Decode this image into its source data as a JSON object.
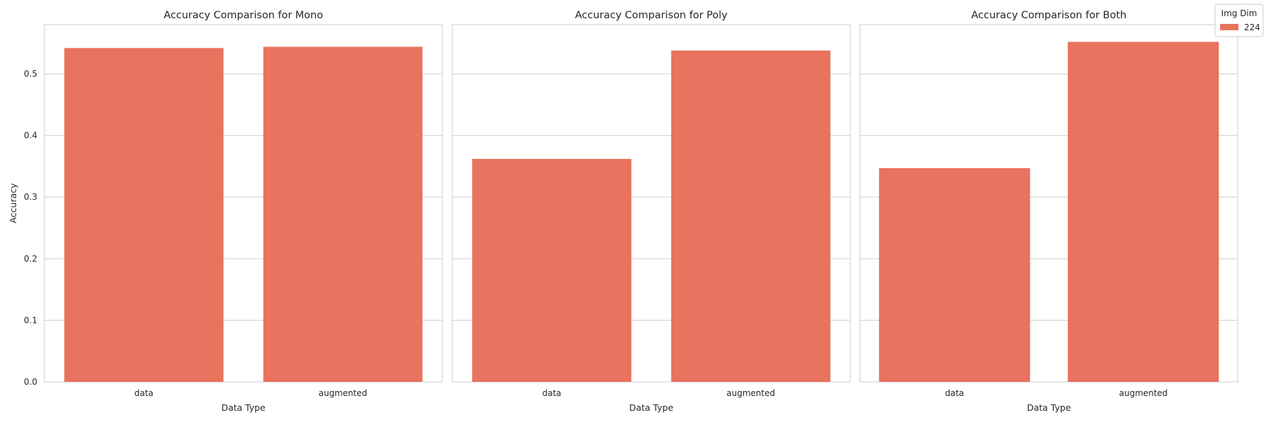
{
  "colors": {
    "bar": "#e8735e",
    "grid": "#cfcfcf",
    "spine": "#cccccc",
    "text": "#262626",
    "background": "#ffffff"
  },
  "legend": {
    "title": "Img Dim",
    "entries": [
      "224"
    ],
    "placement": "top-right"
  },
  "chart_data": [
    {
      "type": "bar",
      "title": "Accuracy Comparison for Mono",
      "xlabel": "Data Type",
      "ylabel": "Accuracy",
      "categories": [
        "data",
        "augmented"
      ],
      "series": [
        {
          "name": "224",
          "values": [
            0.542,
            0.544
          ]
        }
      ],
      "ylim": [
        0,
        0.58
      ],
      "yticks": [
        0.0,
        0.1,
        0.2,
        0.3,
        0.4,
        0.5
      ],
      "grid": true
    },
    {
      "type": "bar",
      "title": "Accuracy Comparison for Poly",
      "xlabel": "Data Type",
      "ylabel": "",
      "categories": [
        "data",
        "augmented"
      ],
      "series": [
        {
          "name": "224",
          "values": [
            0.362,
            0.538
          ]
        }
      ],
      "ylim": [
        0,
        0.58
      ],
      "yticks": [
        0.0,
        0.1,
        0.2,
        0.3,
        0.4,
        0.5
      ],
      "grid": true
    },
    {
      "type": "bar",
      "title": "Accuracy Comparison for Both",
      "xlabel": "Data Type",
      "ylabel": "",
      "categories": [
        "data",
        "augmented"
      ],
      "series": [
        {
          "name": "224",
          "values": [
            0.347,
            0.552
          ]
        }
      ],
      "ylim": [
        0,
        0.58
      ],
      "yticks": [
        0.0,
        0.1,
        0.2,
        0.3,
        0.4,
        0.5
      ],
      "grid": true
    }
  ]
}
